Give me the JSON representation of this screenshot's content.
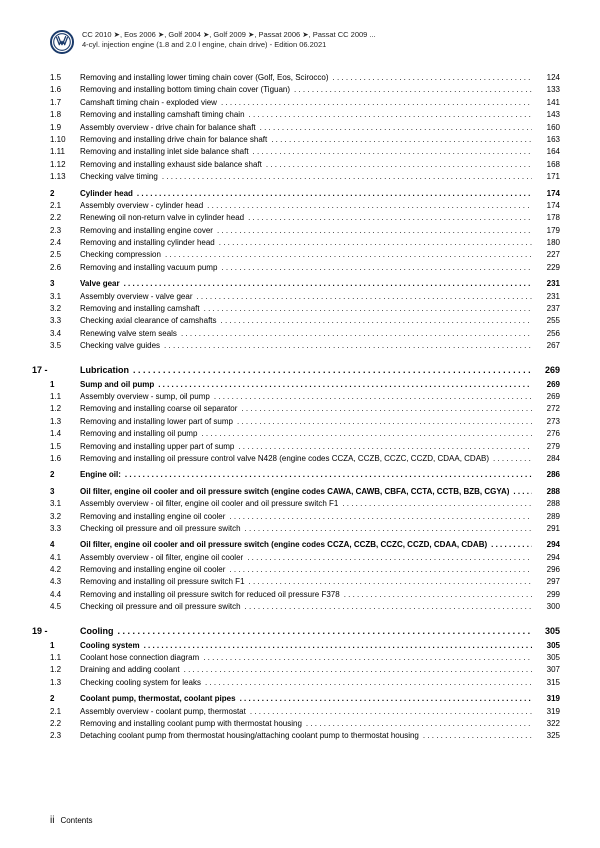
{
  "header": {
    "line1": "CC 2010 ➤, Eos 2006 ➤, Golf 2004 ➤, Golf 2009 ➤, Passat 2006 ➤, Passat CC 2009 ...",
    "line2": "4-cyl. injection engine (1.8 and 2.0 l engine, chain drive) - Edition 06.2021"
  },
  "logo": {
    "color": "#1a3a6a"
  },
  "footer": {
    "page_roman": "ii",
    "label": "Contents"
  },
  "toc": [
    {
      "type": "item",
      "num": "1.5",
      "title": "Removing and installing lower timing chain cover (Golf, Eos, Scirocco)",
      "page": "124"
    },
    {
      "type": "item",
      "num": "1.6",
      "title": "Removing and installing bottom timing chain cover (Tiguan)",
      "page": "133"
    },
    {
      "type": "item",
      "num": "1.7",
      "title": "Camshaft timing chain - exploded view",
      "page": "141"
    },
    {
      "type": "item",
      "num": "1.8",
      "title": "Removing and installing camshaft timing chain",
      "page": "143"
    },
    {
      "type": "item",
      "num": "1.9",
      "title": "Assembly overview - drive chain for balance shaft",
      "page": "160"
    },
    {
      "type": "item",
      "num": "1.10",
      "title": "Removing and installing drive chain for balance shaft",
      "page": "163"
    },
    {
      "type": "item",
      "num": "1.11",
      "title": "Removing and installing inlet side balance shaft",
      "page": "164"
    },
    {
      "type": "item",
      "num": "1.12",
      "title": "Removing and installing exhaust side balance shaft",
      "page": "168"
    },
    {
      "type": "item",
      "num": "1.13",
      "title": "Checking valve timing",
      "page": "171"
    },
    {
      "type": "section",
      "num": "2",
      "title": "Cylinder head",
      "page": "174"
    },
    {
      "type": "item",
      "num": "2.1",
      "title": "Assembly overview - cylinder head",
      "page": "174"
    },
    {
      "type": "item",
      "num": "2.2",
      "title": "Renewing oil non-return valve in cylinder head",
      "page": "178"
    },
    {
      "type": "item",
      "num": "2.3",
      "title": "Removing and installing engine cover",
      "page": "179"
    },
    {
      "type": "item",
      "num": "2.4",
      "title": "Removing and installing cylinder head",
      "page": "180"
    },
    {
      "type": "item",
      "num": "2.5",
      "title": "Checking compression",
      "page": "227"
    },
    {
      "type": "item",
      "num": "2.6",
      "title": "Removing and installing vacuum pump",
      "page": "229"
    },
    {
      "type": "section",
      "num": "3",
      "title": "Valve gear",
      "page": "231"
    },
    {
      "type": "item",
      "num": "3.1",
      "title": "Assembly overview - valve gear",
      "page": "231"
    },
    {
      "type": "item",
      "num": "3.2",
      "title": "Removing and installing camshaft",
      "page": "237"
    },
    {
      "type": "item",
      "num": "3.3",
      "title": "Checking axial clearance of camshafts",
      "page": "255"
    },
    {
      "type": "item",
      "num": "3.4",
      "title": "Renewing valve stem seals",
      "page": "256"
    },
    {
      "type": "item",
      "num": "3.5",
      "title": "Checking valve guides",
      "page": "267"
    },
    {
      "type": "chapter",
      "num": "17 -",
      "title": "Lubrication",
      "page": "269"
    },
    {
      "type": "section",
      "num": "1",
      "title": "Sump and oil pump",
      "page": "269"
    },
    {
      "type": "item",
      "num": "1.1",
      "title": "Assembly overview - sump, oil pump",
      "page": "269"
    },
    {
      "type": "item",
      "num": "1.2",
      "title": "Removing and installing coarse oil separator",
      "page": "272"
    },
    {
      "type": "item",
      "num": "1.3",
      "title": "Removing and installing lower part of sump",
      "page": "273"
    },
    {
      "type": "item",
      "num": "1.4",
      "title": "Removing and installing oil pump",
      "page": "276"
    },
    {
      "type": "item",
      "num": "1.5",
      "title": "Removing and installing upper part of sump",
      "page": "279"
    },
    {
      "type": "item",
      "num": "1.6",
      "title": "Removing and installing oil pressure control valve N428 (engine codes CCZA, CCZB, CCZC, CCZD, CDAA, CDAB)",
      "page": "284"
    },
    {
      "type": "section",
      "num": "2",
      "title": "Engine oil:",
      "page": "286"
    },
    {
      "type": "section",
      "num": "3",
      "title": "Oil filter, engine oil cooler and oil pressure switch (engine codes CAWA, CAWB, CBFA, CCTA, CCTB, BZB, CGYA)",
      "page": "288"
    },
    {
      "type": "item",
      "num": "3.1",
      "title": "Assembly overview - oil filter, engine oil cooler and oil pressure switch F1",
      "page": "288"
    },
    {
      "type": "item",
      "num": "3.2",
      "title": "Removing and installing engine oil cooler",
      "page": "289"
    },
    {
      "type": "item",
      "num": "3.3",
      "title": "Checking oil pressure and oil pressure switch",
      "page": "291"
    },
    {
      "type": "section",
      "num": "4",
      "title": "Oil filter, engine oil cooler and oil pressure switch (engine codes CCZA, CCZB, CCZC, CCZD, CDAA, CDAB)",
      "page": "294"
    },
    {
      "type": "item",
      "num": "4.1",
      "title": "Assembly overview - oil filter, engine oil cooler",
      "page": "294"
    },
    {
      "type": "item",
      "num": "4.2",
      "title": "Removing and installing engine oil cooler",
      "page": "296"
    },
    {
      "type": "item",
      "num": "4.3",
      "title": "Removing and installing oil pressure switch F1",
      "page": "297"
    },
    {
      "type": "item",
      "num": "4.4",
      "title": "Removing and installing oil pressure switch for reduced oil pressure F378",
      "page": "299"
    },
    {
      "type": "item",
      "num": "4.5",
      "title": "Checking oil pressure and oil pressure switch",
      "page": "300"
    },
    {
      "type": "chapter",
      "num": "19 -",
      "title": "Cooling",
      "page": "305"
    },
    {
      "type": "section",
      "num": "1",
      "title": "Cooling system",
      "page": "305"
    },
    {
      "type": "item",
      "num": "1.1",
      "title": "Coolant hose connection diagram",
      "page": "305"
    },
    {
      "type": "item",
      "num": "1.2",
      "title": "Draining and adding coolant",
      "page": "307"
    },
    {
      "type": "item",
      "num": "1.3",
      "title": "Checking cooling system for leaks",
      "page": "315"
    },
    {
      "type": "section",
      "num": "2",
      "title": "Coolant pump, thermostat, coolant pipes",
      "page": "319"
    },
    {
      "type": "item",
      "num": "2.1",
      "title": "Assembly overview - coolant pump, thermostat",
      "page": "319"
    },
    {
      "type": "item",
      "num": "2.2",
      "title": "Removing and installing coolant pump with thermostat housing",
      "page": "322"
    },
    {
      "type": "item",
      "num": "2.3",
      "title": "Detaching coolant pump from thermostat housing/attaching coolant pump to thermostat housing",
      "page": "325"
    }
  ]
}
